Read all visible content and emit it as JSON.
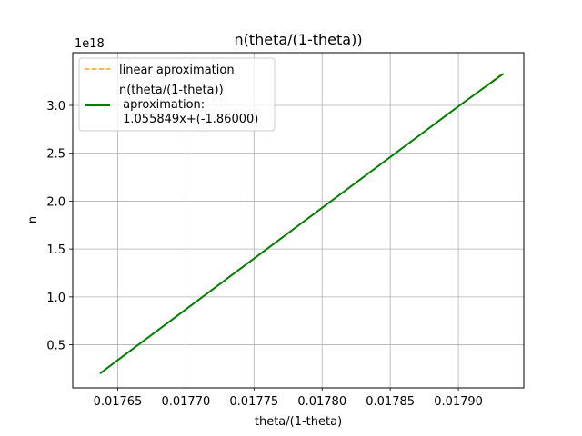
{
  "chart_data": {
    "type": "line",
    "title": "n(theta/(1-theta))",
    "xlabel": "theta/(1-theta)",
    "ylabel": "n",
    "y_offset_label": "1e18",
    "xlim": [
      0.017617,
      0.017948
    ],
    "ylim": [
      0.05,
      3.55
    ],
    "x_ticks": [
      0.01765,
      0.0177,
      0.01775,
      0.0178,
      0.01785,
      0.0179
    ],
    "x_tick_labels": [
      "0.01765",
      "0.01770",
      "0.01775",
      "0.01780",
      "0.01785",
      "0.01790"
    ],
    "y_ticks": [
      0.5,
      1.0,
      1.5,
      2.0,
      2.5,
      3.0
    ],
    "y_tick_labels": [
      "0.5",
      "1.0",
      "1.5",
      "2.0",
      "2.5",
      "3.0"
    ],
    "grid": true,
    "legend_position": "top-left",
    "series": [
      {
        "name": "linear aproximation",
        "style": "dashed",
        "color": "#ffa500",
        "x": [
          0.017637,
          0.017933
        ],
        "y": [
          0.2,
          3.34
        ]
      },
      {
        "name": "n(theta/(1-theta))\n aproximation:\n 1.055849x+(-1.86000)",
        "style": "solid",
        "color": "#008000",
        "x": [
          0.017637,
          0.01765,
          0.0177,
          0.01775,
          0.0178,
          0.01785,
          0.0179,
          0.017933
        ],
        "y": [
          0.2,
          0.34,
          0.87,
          1.4,
          1.93,
          2.46,
          2.99,
          3.33
        ]
      }
    ]
  }
}
